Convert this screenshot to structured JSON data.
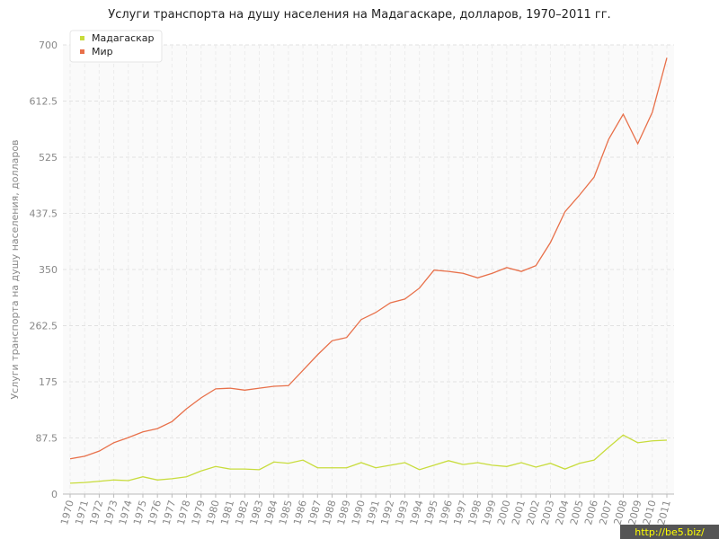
{
  "chart_data": {
    "type": "line",
    "title": "Услуги транспорта на душу населения на Мадагаскаре, долларов, 1970–2011 гг.",
    "y_label": "Услуги транспорта на душу населения, долларов",
    "watermark": "http://be5.biz/",
    "categories": [
      "1970",
      "1971",
      "1972",
      "1973",
      "1974",
      "1975",
      "1976",
      "1977",
      "1978",
      "1979",
      "1980",
      "1981",
      "1982",
      "1983",
      "1984",
      "1985",
      "1986",
      "1987",
      "1988",
      "1989",
      "1990",
      "1991",
      "1992",
      "1993",
      "1994",
      "1995",
      "1996",
      "1997",
      "1998",
      "1999",
      "2000",
      "2001",
      "2002",
      "2003",
      "2004",
      "2005",
      "2006",
      "2007",
      "2008",
      "2009",
      "2010",
      "2011"
    ],
    "series": [
      {
        "name": "Мадагаскар",
        "color": "#c8dc3c",
        "values": [
          17,
          18,
          20,
          22,
          21,
          27,
          22,
          24,
          27,
          36,
          43,
          39,
          39,
          38,
          50,
          48,
          53,
          41,
          41,
          41,
          49,
          41,
          45,
          49,
          38,
          45,
          52,
          46,
          49,
          45,
          43,
          49,
          42,
          48,
          39,
          48,
          53,
          73,
          92,
          80,
          83,
          84
        ]
      },
      {
        "name": "Мир",
        "color": "#e8704a",
        "values": [
          55,
          59,
          67,
          80,
          88,
          97,
          102,
          113,
          133,
          150,
          164,
          165,
          162,
          165,
          168,
          169,
          193,
          217,
          239,
          244,
          272,
          283,
          298,
          304,
          321,
          349,
          347,
          344,
          337,
          344,
          353,
          347,
          356,
          392,
          440,
          466,
          494,
          553,
          592,
          546,
          595,
          680
        ]
      }
    ],
    "ylim": [
      0,
      700
    ],
    "yticks": [
      0,
      87.5,
      175,
      262.5,
      350,
      437.5,
      525,
      612.5,
      700
    ],
    "grid": true,
    "legend": "top-left"
  }
}
